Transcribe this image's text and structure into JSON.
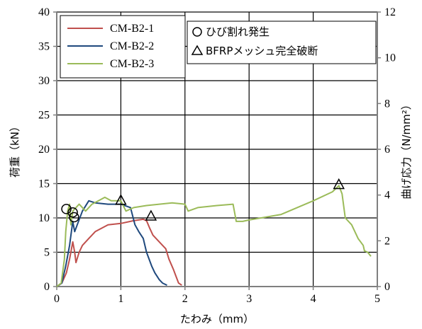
{
  "chart_data": {
    "type": "line",
    "xlabel": "たわみ（mm）",
    "ylabel": "荷重（kN）",
    "y2label": "曲げ応力（N/mm²）",
    "xlim": [
      0,
      5
    ],
    "ylim": [
      0,
      40
    ],
    "y2lim": [
      0,
      12
    ],
    "xticks": [
      "0",
      "1",
      "2",
      "3",
      "4",
      "5"
    ],
    "yticks": [
      "0",
      "5",
      "10",
      "15",
      "20",
      "25",
      "30",
      "35",
      "40"
    ],
    "y2ticks": [
      "0",
      "2",
      "4",
      "6",
      "8",
      "10",
      "12"
    ],
    "grid": true,
    "legend_placement": "top-left",
    "series": [
      {
        "name": "CM-B2-1",
        "color": "#c0504d",
        "points": [
          [
            0,
            0
          ],
          [
            0.08,
            0.5
          ],
          [
            0.15,
            2
          ],
          [
            0.2,
            4
          ],
          [
            0.25,
            6.5
          ],
          [
            0.28,
            5
          ],
          [
            0.3,
            3.5
          ],
          [
            0.35,
            5
          ],
          [
            0.4,
            6
          ],
          [
            0.5,
            7
          ],
          [
            0.6,
            8
          ],
          [
            0.8,
            9
          ],
          [
            1.0,
            9.2
          ],
          [
            1.2,
            9.6
          ],
          [
            1.35,
            9.8
          ],
          [
            1.4,
            9.6
          ],
          [
            1.45,
            8.5
          ],
          [
            1.5,
            7.5
          ],
          [
            1.6,
            6.5
          ],
          [
            1.7,
            5.5
          ],
          [
            1.75,
            4
          ],
          [
            1.82,
            2.5
          ],
          [
            1.86,
            1.5
          ],
          [
            1.9,
            0.5
          ],
          [
            1.95,
            0.2
          ]
        ]
      },
      {
        "name": "CM-B2-2",
        "color": "#1f497d",
        "points": [
          [
            0,
            0
          ],
          [
            0.08,
            0.5
          ],
          [
            0.14,
            3
          ],
          [
            0.2,
            6
          ],
          [
            0.25,
            9.5
          ],
          [
            0.28,
            8
          ],
          [
            0.32,
            9
          ],
          [
            0.4,
            11
          ],
          [
            0.5,
            12.5
          ],
          [
            0.6,
            12.2
          ],
          [
            0.8,
            12
          ],
          [
            1.0,
            12
          ],
          [
            1.15,
            11.5
          ],
          [
            1.22,
            9
          ],
          [
            1.28,
            8
          ],
          [
            1.35,
            7
          ],
          [
            1.4,
            5
          ],
          [
            1.48,
            3
          ],
          [
            1.53,
            2
          ],
          [
            1.6,
            1
          ],
          [
            1.65,
            0.5
          ],
          [
            1.72,
            0.2
          ]
        ]
      },
      {
        "name": "CM-B2-3",
        "color": "#9bbb59",
        "points": [
          [
            0,
            0
          ],
          [
            0.07,
            0.5
          ],
          [
            0.12,
            4
          ],
          [
            0.14,
            8
          ],
          [
            0.17,
            11
          ],
          [
            0.2,
            12
          ],
          [
            0.22,
            9
          ],
          [
            0.25,
            11
          ],
          [
            0.35,
            12
          ],
          [
            0.45,
            11
          ],
          [
            0.55,
            12
          ],
          [
            0.65,
            12.5
          ],
          [
            0.75,
            13
          ],
          [
            0.85,
            12.5
          ],
          [
            1.0,
            12.5
          ],
          [
            1.08,
            11
          ],
          [
            1.2,
            11.5
          ],
          [
            1.4,
            11.8
          ],
          [
            1.6,
            12
          ],
          [
            1.8,
            12.2
          ],
          [
            2.0,
            12
          ],
          [
            2.05,
            11
          ],
          [
            2.2,
            11.5
          ],
          [
            2.5,
            11.8
          ],
          [
            2.75,
            12
          ],
          [
            2.8,
            9.5
          ],
          [
            2.9,
            9.5
          ],
          [
            3.0,
            9.7
          ],
          [
            3.5,
            10.5
          ],
          [
            4.0,
            12.5
          ],
          [
            4.3,
            13.8
          ],
          [
            4.4,
            14.7
          ],
          [
            4.45,
            13.5
          ],
          [
            4.5,
            10
          ],
          [
            4.6,
            9
          ],
          [
            4.7,
            7
          ],
          [
            4.78,
            6
          ],
          [
            4.8,
            5.2
          ],
          [
            4.85,
            5
          ],
          [
            4.9,
            4.4
          ]
        ]
      }
    ],
    "annotations": [
      {
        "label": "ひび割れ発生",
        "marker": "circle",
        "points": [
          [
            0.15,
            11.3
          ],
          [
            0.25,
            10.8
          ],
          [
            0.27,
            10.1
          ]
        ]
      },
      {
        "label": "BFRPメッシュ完全破断",
        "marker": "triangle",
        "points": [
          [
            1.0,
            12.5
          ],
          [
            1.47,
            10.2
          ],
          [
            4.4,
            14.8
          ]
        ]
      }
    ]
  }
}
